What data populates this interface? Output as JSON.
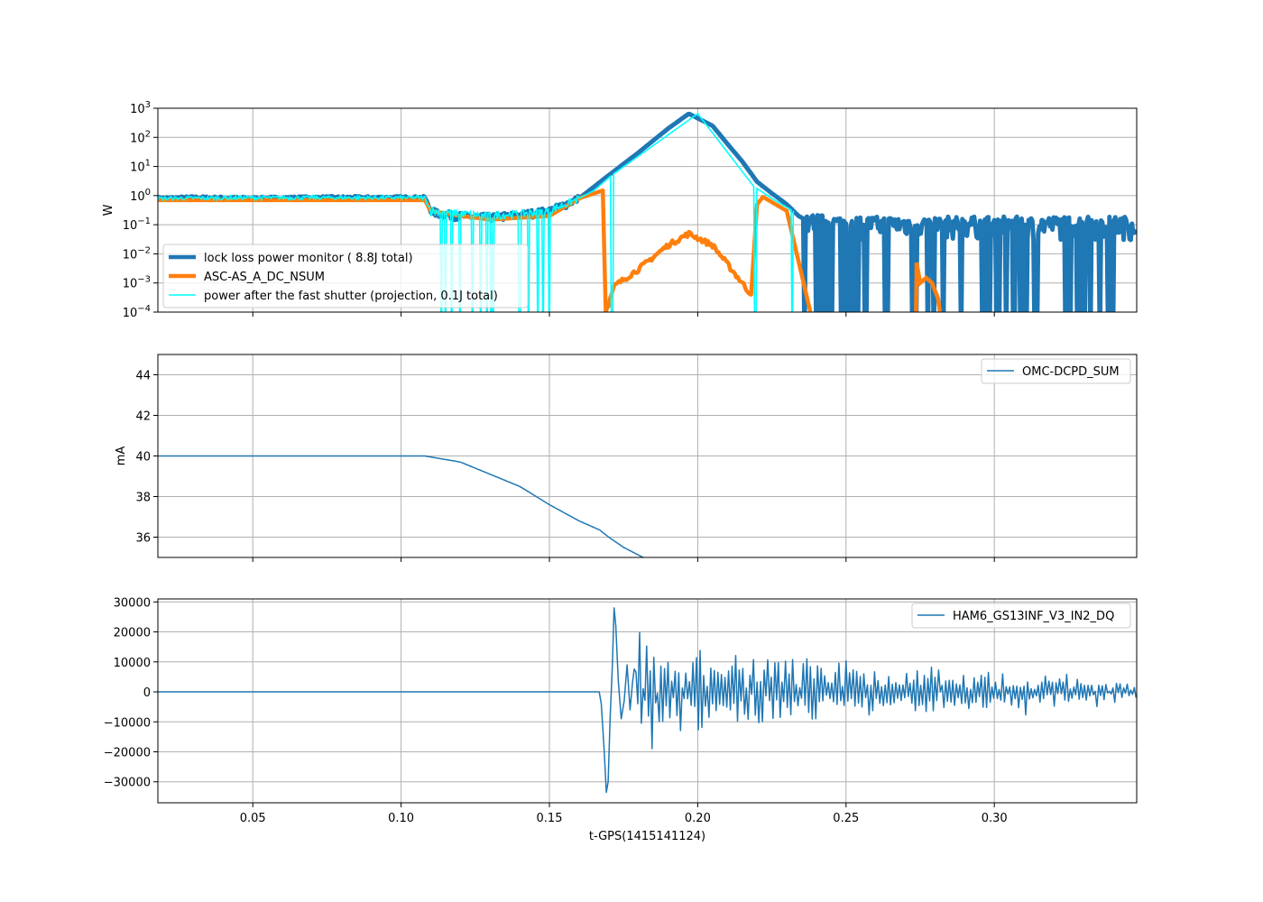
{
  "colors": {
    "lockloss": "#1f77b4",
    "nsum": "#ff7f0e",
    "shutter": "#00ffff",
    "dcpd": "#1f77b4",
    "gs13": "#1f77b4",
    "grid": "#b0b0b0"
  },
  "shared_x": {
    "label": "t-GPS(1415141124)",
    "lim": [
      0.018,
      0.348
    ],
    "ticks": [
      0.05,
      0.1,
      0.15,
      0.2,
      0.25,
      0.3
    ],
    "tick_labels": [
      "0.05",
      "0.10",
      "0.15",
      "0.20",
      "0.25",
      "0.30"
    ]
  },
  "chart_data": [
    {
      "type": "line",
      "yscale": "log",
      "ylabel": "W",
      "ylim": [
        0.0001,
        1000
      ],
      "yticks": [
        {
          "base": "10",
          "exp": "3"
        },
        {
          "base": "10",
          "exp": "2"
        },
        {
          "base": "10",
          "exp": "1"
        },
        {
          "base": "10",
          "exp": "0"
        },
        {
          "base": "10",
          "exp": "−1"
        },
        {
          "base": "10",
          "exp": "−2"
        },
        {
          "base": "10",
          "exp": "−3"
        },
        {
          "base": "10",
          "exp": "−4"
        }
      ],
      "grid": true,
      "legend_position": "lower-left",
      "series": [
        {
          "name": "lock loss power monitor (  8.8J total)",
          "x": [
            0.018,
            0.03,
            0.05,
            0.07,
            0.09,
            0.108,
            0.11,
            0.112,
            0.12,
            0.13,
            0.14,
            0.15,
            0.16,
            0.17,
            0.18,
            0.19,
            0.197,
            0.205,
            0.21,
            0.215,
            0.22,
            0.225,
            0.23,
            0.234,
            0.238,
            0.25,
            0.27,
            0.29,
            0.31,
            0.33,
            0.347
          ],
          "y": [
            0.8,
            0.85,
            0.8,
            0.85,
            0.85,
            0.85,
            0.3,
            0.25,
            0.2,
            0.18,
            0.22,
            0.3,
            0.8,
            5,
            30,
            200,
            650,
            250,
            60,
            15,
            3,
            1.2,
            0.5,
            0.2,
            0.12,
            0.1,
            0.1,
            0.1,
            0.1,
            0.1,
            0.1
          ]
        },
        {
          "name": "ASC-AS_A_DC_NSUM",
          "x": [
            0.018,
            0.05,
            0.1,
            0.108,
            0.11,
            0.12,
            0.13,
            0.15,
            0.16,
            0.168,
            0.169,
            0.172,
            0.18,
            0.19,
            0.197,
            0.205,
            0.215,
            0.218,
            0.22,
            0.222,
            0.23,
            0.238
          ],
          "y": [
            0.7,
            0.7,
            0.7,
            0.7,
            0.3,
            0.2,
            0.15,
            0.2,
            0.8,
            1.5,
            0.0001,
            0.0008,
            0.003,
            0.02,
            0.05,
            0.02,
            0.001,
            0.0004,
            0.5,
            0.9,
            0.3,
            0.0001
          ]
        },
        {
          "name": "power after the fast shutter (projection,  0.1J total)",
          "x": [
            0.018,
            0.05,
            0.1,
            0.108,
            0.11,
            0.12,
            0.13,
            0.15,
            0.16,
            0.165,
            0.171,
            0.2,
            0.219,
            0.221,
            0.225,
            0.232
          ],
          "y": [
            0.8,
            0.85,
            0.85,
            0.85,
            0.3,
            0.25,
            0.2,
            0.3,
            0.8,
            1.5,
            5,
            650,
            2,
            1.5,
            0.8,
            0.3
          ]
        }
      ]
    },
    {
      "type": "line",
      "ylabel": "mA",
      "ylim": [
        35,
        45
      ],
      "yticks": [
        36,
        38,
        40,
        42,
        44
      ],
      "grid": true,
      "legend_position": "upper-right",
      "series": [
        {
          "name": "OMC-DCPD_SUM",
          "x": [
            0.018,
            0.05,
            0.1,
            0.108,
            0.11,
            0.12,
            0.13,
            0.135,
            0.14,
            0.15,
            0.16,
            0.167,
            0.17,
            0.175,
            0.182
          ],
          "y": [
            40,
            40,
            40,
            40,
            39.95,
            39.7,
            39.1,
            38.8,
            38.5,
            37.6,
            36.8,
            36.35,
            36.0,
            35.5,
            34.97
          ]
        }
      ]
    },
    {
      "type": "line",
      "ylim": [
        -37000,
        31000
      ],
      "yticks": [
        30000,
        20000,
        10000,
        0,
        -10000,
        -20000,
        -30000
      ],
      "ytick_labels": [
        "30000",
        "20000",
        "10000",
        "0",
        "−10000",
        "−20000",
        "−30000"
      ],
      "grid": true,
      "legend_position": "upper-right",
      "series": [
        {
          "name": "HAM6_GS13INF_V3_IN2_DQ",
          "x": [
            0.018,
            0.1,
            0.167,
            0.168,
            0.169,
            0.17,
            0.171,
            0.172,
            0.173,
            0.175,
            0.18,
            0.2,
            0.25,
            0.3,
            0.347
          ],
          "y": [
            0,
            0,
            0,
            -10000,
            -33000,
            -20000,
            0,
            28000,
            10000,
            -3000,
            13000,
            12000,
            7000,
            5000,
            3000
          ]
        }
      ]
    }
  ]
}
